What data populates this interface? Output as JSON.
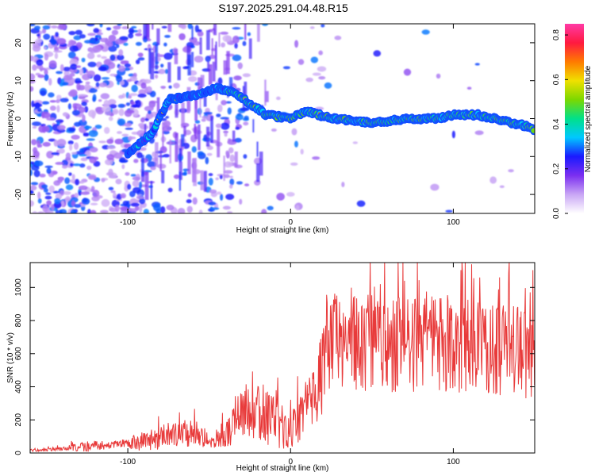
{
  "title": "S197.2025.291.04.48.R15",
  "chart_data": [
    {
      "type": "heatmap",
      "xlabel": "Height of straight line (km)",
      "ylabel": "Frequency (Hz)",
      "xlim": [
        -160,
        150
      ],
      "ylim": [
        -25,
        25
      ],
      "xticks": [
        -100,
        0,
        100
      ],
      "yticks": [
        -20,
        -10,
        0,
        10,
        20
      ],
      "colorbar": {
        "label": "Normalized spectral amplitude",
        "range": [
          0,
          0.85
        ],
        "ticks": [
          0.0,
          0.2,
          0.4,
          0.6,
          0.8
        ],
        "colors": [
          "#ffffff",
          "#c9a6f5",
          "#7b2ff0",
          "#1a1aff",
          "#00c8ff",
          "#00e08a",
          "#7cd800",
          "#f0e000",
          "#ff7a00",
          "#ff1a40",
          "#ff3aa6"
        ]
      },
      "ridge": {
        "description_points_x": [
          -100,
          -85,
          -75,
          -60,
          -45,
          -35,
          -25,
          -15,
          0,
          10,
          25,
          50,
          75,
          90,
          100,
          115,
          125,
          135,
          145,
          150
        ],
        "frequency_y": [
          -9,
          -4,
          5,
          6,
          8,
          7,
          4,
          1,
          0,
          2,
          0,
          -1,
          0,
          0,
          1,
          1,
          0,
          -1,
          -2,
          -3
        ]
      }
    },
    {
      "type": "line",
      "xlabel": "Height of straight line (km)",
      "ylabel": "SNR (10 * v/v)",
      "xlim": [
        -160,
        150
      ],
      "ylim": [
        0,
        1150
      ],
      "xticks": [
        -100,
        0,
        100
      ],
      "yticks": [
        0,
        200,
        400,
        600,
        800,
        1000
      ],
      "color": "#e83a3a",
      "envelope": {
        "x": [
          -160,
          -140,
          -125,
          -105,
          -90,
          -75,
          -60,
          -48,
          -35,
          -28,
          -20,
          -8,
          0,
          8,
          15,
          18,
          22,
          35,
          60,
          100,
          130,
          150
        ],
        "mean": [
          15,
          25,
          40,
          55,
          70,
          110,
          120,
          70,
          160,
          280,
          260,
          180,
          120,
          250,
          350,
          400,
          680,
          680,
          660,
          650,
          620,
          600
        ],
        "amplitude": [
          8,
          10,
          35,
          20,
          60,
          80,
          90,
          40,
          120,
          180,
          200,
          150,
          110,
          170,
          180,
          250,
          300,
          300,
          300,
          290,
          280,
          280
        ]
      }
    }
  ]
}
